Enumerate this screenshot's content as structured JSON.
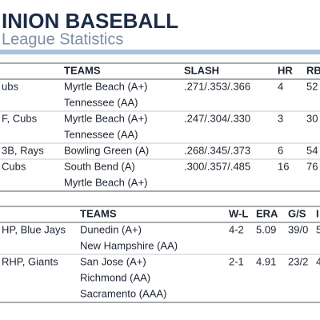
{
  "header": {
    "title": "INION BASEBALL",
    "subtitle": "League Statistics"
  },
  "tables": [
    {
      "columns": [
        "TEAMS",
        "SLASH",
        "HR",
        "RB"
      ],
      "rows": [
        {
          "player": "ubs",
          "teams": [
            "Myrtle Beach (A+)",
            "Tennessee (AA)"
          ],
          "stats": [
            ".271/.353/.366",
            "4",
            "52"
          ]
        },
        {
          "player": "F, Cubs",
          "teams": [
            "Myrtle Beach (A+)",
            "Tennessee (AA)"
          ],
          "stats": [
            ".247/.304/.330",
            "3",
            "30"
          ]
        },
        {
          "player": "3B, Rays",
          "teams": [
            "Bowling Green (A)"
          ],
          "stats": [
            ".268/.345/.373",
            "6",
            "54"
          ]
        },
        {
          "player": "Cubs",
          "teams": [
            "South Bend (A)",
            "Myrtle Beach (A+)"
          ],
          "stats": [
            ".300/.357/.485",
            "16",
            "76"
          ]
        }
      ]
    },
    {
      "columns": [
        "TEAMS",
        "W-L",
        "ERA",
        "G/S",
        "I"
      ],
      "rows": [
        {
          "player": "HP, Blue Jays",
          "teams": [
            "Dunedin (A+)",
            "New Hampshire (AA)"
          ],
          "stats": [
            "4-2",
            "5.09",
            "39/0",
            "5"
          ]
        },
        {
          "player": "RHP, Giants",
          "teams": [
            "San Jose (A+)",
            "Richmond (AA)",
            "Sacramento (AAA)"
          ],
          "stats": [
            "2-1",
            "4.91",
            "23/2",
            "4"
          ]
        }
      ]
    }
  ]
}
